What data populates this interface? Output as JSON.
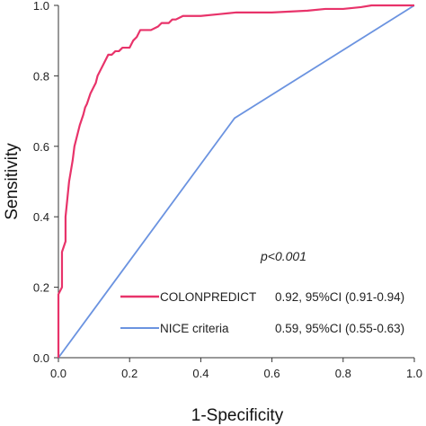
{
  "chart_data": {
    "type": "line",
    "title": "",
    "xlabel": "1-Specificity",
    "ylabel": "Sensitivity",
    "xlim": [
      0,
      1
    ],
    "ylim": [
      0,
      1
    ],
    "xticks": [
      "0.0",
      "0.2",
      "0.4",
      "0.6",
      "0.8",
      "1.0"
    ],
    "yticks": [
      "0.0",
      "0.2",
      "0.4",
      "0.6",
      "0.8",
      "1.0"
    ],
    "grid": false,
    "legend_position": "bottom-right",
    "annotation": "p<0.001",
    "series": [
      {
        "name": "COLONPREDICT",
        "stat": "0.92,  95%CI (0.91-0.94)",
        "color": "#e8336a",
        "x": [
          0,
          0,
          0.01,
          0.01,
          0.02,
          0.02,
          0.025,
          0.03,
          0.035,
          0.04,
          0.045,
          0.05,
          0.055,
          0.06,
          0.07,
          0.075,
          0.08,
          0.09,
          0.1,
          0.105,
          0.11,
          0.12,
          0.13,
          0.14,
          0.15,
          0.16,
          0.17,
          0.18,
          0.2,
          0.21,
          0.22,
          0.23,
          0.24,
          0.25,
          0.26,
          0.28,
          0.29,
          0.3,
          0.31,
          0.32,
          0.33,
          0.35,
          0.38,
          0.4,
          0.45,
          0.5,
          0.6,
          0.7,
          0.75,
          0.8,
          0.85,
          0.88,
          0.9,
          0.95,
          1.0
        ],
        "y": [
          0,
          0.18,
          0.2,
          0.3,
          0.33,
          0.4,
          0.45,
          0.5,
          0.53,
          0.56,
          0.6,
          0.62,
          0.64,
          0.66,
          0.69,
          0.71,
          0.72,
          0.75,
          0.77,
          0.78,
          0.8,
          0.82,
          0.84,
          0.86,
          0.86,
          0.87,
          0.87,
          0.88,
          0.88,
          0.9,
          0.91,
          0.93,
          0.93,
          0.93,
          0.93,
          0.94,
          0.95,
          0.95,
          0.95,
          0.96,
          0.96,
          0.97,
          0.97,
          0.97,
          0.975,
          0.98,
          0.98,
          0.985,
          0.99,
          0.99,
          0.995,
          1.0,
          1.0,
          1.0,
          1.0
        ]
      },
      {
        "name": "NICE  criteria",
        "stat": "0.59,  95%CI (0.55-0.63)",
        "color": "#6b93e0",
        "x": [
          0,
          0.495,
          1.0
        ],
        "y": [
          0,
          0.68,
          1.0
        ]
      }
    ]
  }
}
